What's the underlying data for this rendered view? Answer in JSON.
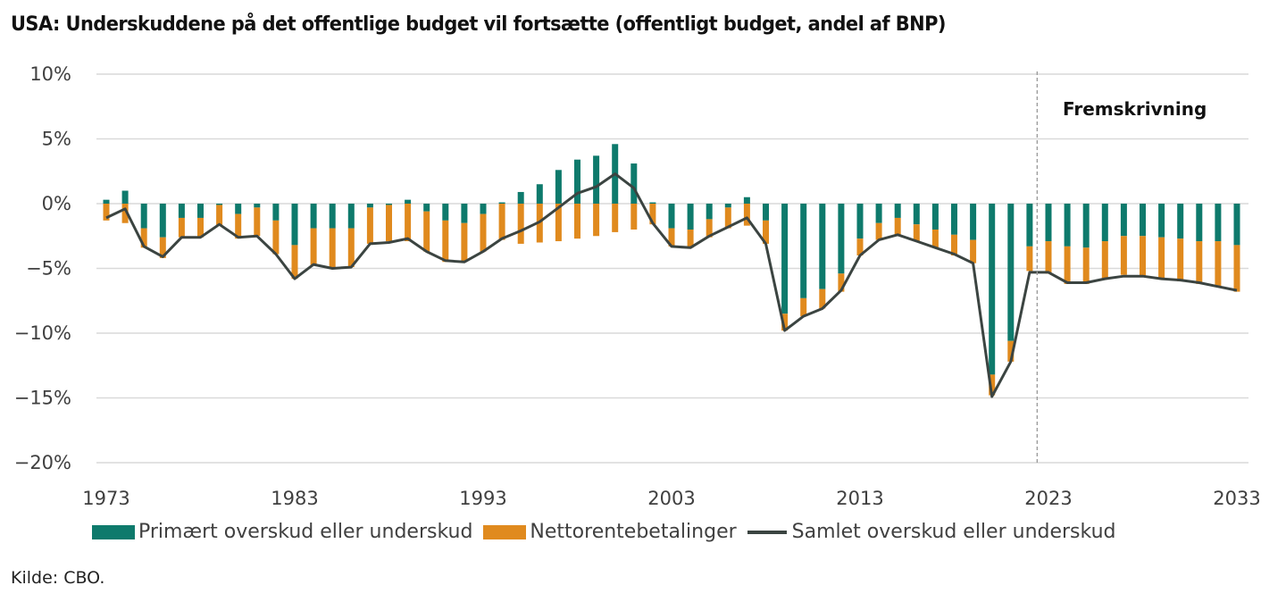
{
  "title": "USA: Underskuddene på det offentlige budget vil fortsætte (offentligt budget, andel af BNP)",
  "source": "Kilde: CBO.",
  "colors": {
    "primary": "#0e7a6c",
    "interest": "#e08a1e",
    "total": "#3b4441",
    "grid": "#d9d9d9",
    "divider": "#999999"
  },
  "chart_data": {
    "type": "bar",
    "stacked": true,
    "title": "USA: Underskuddene på det offentlige budget vil fortsætte (offentligt budget, andel af BNP)",
    "xlabel": "",
    "ylabel": "",
    "ylim": [
      -20,
      10
    ],
    "yticks": [
      10,
      5,
      0,
      -5,
      -10,
      -15,
      -20
    ],
    "ytick_labels": [
      "10%",
      "5%",
      "0%",
      "−5%",
      "−10%",
      "−15%",
      "−20%"
    ],
    "xtick_labels": [
      "1973",
      "1983",
      "1993",
      "2003",
      "2013",
      "2023",
      "2033"
    ],
    "grid": true,
    "legend_position": "bottom",
    "annotation": {
      "text": "Fremskrivning",
      "projection_start": 2022.4
    },
    "categories": [
      1973,
      1974,
      1975,
      1976,
      1977,
      1978,
      1979,
      1980,
      1981,
      1982,
      1983,
      1984,
      1985,
      1986,
      1987,
      1988,
      1989,
      1990,
      1991,
      1992,
      1993,
      1994,
      1995,
      1996,
      1997,
      1998,
      1999,
      2000,
      2001,
      2002,
      2003,
      2004,
      2005,
      2006,
      2007,
      2008,
      2009,
      2010,
      2011,
      2012,
      2013,
      2014,
      2015,
      2016,
      2017,
      2018,
      2019,
      2020,
      2021,
      2022,
      2023,
      2024,
      2025,
      2026,
      2027,
      2028,
      2029,
      2030,
      2031,
      2032,
      2033
    ],
    "series": [
      {
        "name": "Primært overskud eller underskud",
        "type": "bar",
        "values": [
          0.3,
          1.0,
          -1.9,
          -2.6,
          -1.1,
          -1.1,
          -0.1,
          -0.8,
          -0.3,
          -1.3,
          -3.2,
          -1.9,
          -1.9,
          -1.9,
          -0.3,
          -0.1,
          0.3,
          -0.6,
          -1.3,
          -1.5,
          -0.8,
          0.1,
          0.9,
          1.5,
          2.6,
          3.4,
          3.7,
          4.6,
          3.1,
          0.1,
          -1.9,
          -2.0,
          -1.2,
          -0.3,
          0.5,
          -1.3,
          -8.5,
          -7.3,
          -6.6,
          -5.4,
          -2.7,
          -1.5,
          -1.1,
          -1.6,
          -2.0,
          -2.4,
          -2.8,
          -13.2,
          -10.6,
          -3.3,
          -2.9,
          -3.3,
          -3.4,
          -2.9,
          -2.5,
          -2.5,
          -2.6,
          -2.7,
          -2.9,
          -2.9,
          -3.2
        ]
      },
      {
        "name": "Nettorentebetalinger",
        "type": "bar",
        "values": [
          -1.3,
          -1.5,
          -1.5,
          -1.6,
          -1.5,
          -1.5,
          -1.6,
          -1.9,
          -2.2,
          -2.6,
          -2.6,
          -2.9,
          -3.1,
          -3.0,
          -2.8,
          -2.8,
          -2.9,
          -3.1,
          -3.2,
          -3.0,
          -2.9,
          -2.8,
          -3.1,
          -3.0,
          -2.9,
          -2.7,
          -2.5,
          -2.2,
          -2.0,
          -1.6,
          -1.4,
          -1.4,
          -1.4,
          -1.6,
          -1.7,
          -1.8,
          -1.3,
          -1.4,
          -1.5,
          -1.4,
          -1.3,
          -1.3,
          -1.3,
          -1.3,
          -1.4,
          -1.6,
          -1.8,
          -1.6,
          -1.6,
          -1.9,
          -2.5,
          -2.9,
          -2.8,
          -2.9,
          -3.0,
          -3.1,
          -3.2,
          -3.3,
          -3.3,
          -3.5,
          -3.6
        ]
      },
      {
        "name": "Samlet overskud eller underskud",
        "type": "line",
        "values": [
          -1.1,
          -0.4,
          -3.3,
          -4.1,
          -2.6,
          -2.6,
          -1.6,
          -2.6,
          -2.5,
          -3.9,
          -5.8,
          -4.7,
          -5.0,
          -4.9,
          -3.1,
          -3.0,
          -2.7,
          -3.7,
          -4.4,
          -4.5,
          -3.7,
          -2.7,
          -2.1,
          -1.4,
          -0.3,
          0.8,
          1.3,
          2.3,
          1.2,
          -1.5,
          -3.3,
          -3.4,
          -2.5,
          -1.8,
          -1.1,
          -3.1,
          -9.8,
          -8.7,
          -8.1,
          -6.7,
          -4.0,
          -2.8,
          -2.4,
          -2.9,
          -3.4,
          -3.9,
          -4.6,
          -14.9,
          -12.2,
          -5.3,
          -5.3,
          -6.1,
          -6.1,
          -5.8,
          -5.6,
          -5.6,
          -5.8,
          -5.9,
          -6.1,
          -6.4,
          -6.7
        ]
      }
    ]
  },
  "legend": [
    {
      "label": "Primært overskud eller underskud",
      "kind": "bar"
    },
    {
      "label": "Nettorentebetalinger",
      "kind": "bar"
    },
    {
      "label": "Samlet overskud eller underskud",
      "kind": "line"
    }
  ]
}
